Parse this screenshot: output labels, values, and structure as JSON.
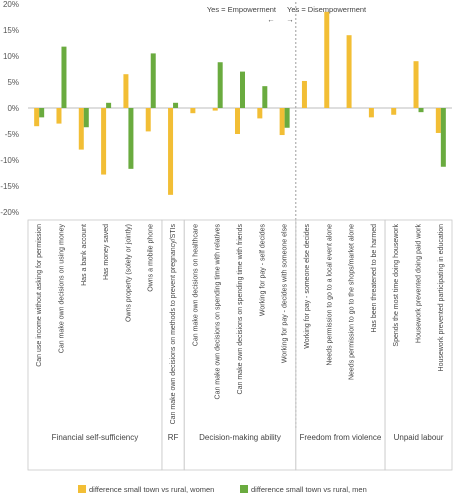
{
  "chart_data": {
    "type": "bar",
    "ylim": [
      -20,
      20
    ],
    "yticks": [
      "-20%",
      "-15%",
      "-10%",
      "-5%",
      "0%",
      "5%",
      "10%",
      "15%",
      "20%"
    ],
    "ytick_values": [
      -20,
      -15,
      -10,
      -5,
      0,
      5,
      10,
      15,
      20
    ],
    "grid": false,
    "categories": [
      "Can use income without asking for permission",
      "Can make own decisions on using money",
      "Has a bank account",
      "Has money saved",
      "Owns property (solely or jointly)",
      "Owns a mobile phone",
      "Can make own decisions on  methods to prevent pregnancy/STIs",
      "Can make own decisions on healthcare",
      "Can make own decisions on spending time with relatives",
      "Can make own decisions on spending time with friends",
      "Working for pay - self decides",
      "Working for pay - decides with someone else",
      "Working for pay - someone else decides",
      "Needs permission to go to a local event alone",
      "Needs permission to go to the shops/market alone",
      "Has been threatened to be harmed",
      "Spends the most time doing housework",
      "Housework prevented doing paid work",
      "Housework prevented participating in education"
    ],
    "series": [
      {
        "name": "difference small town vs rural, women",
        "color": "#F2BE35",
        "values": [
          -3.5,
          -3.0,
          -8.0,
          -12.8,
          6.5,
          -4.5,
          -16.7,
          -1.0,
          -0.5,
          -5.0,
          -2.0,
          -5.2,
          5.2,
          18.5,
          14.0,
          -1.8,
          -1.3,
          9.0,
          -4.8
        ]
      },
      {
        "name": "difference small town vs rural, men",
        "color": "#6AAB3F",
        "values": [
          -1.8,
          11.8,
          -3.7,
          1.0,
          -11.7,
          10.5,
          1.0,
          0.0,
          8.8,
          7.0,
          4.2,
          -3.8,
          0.0,
          0.0,
          0.0,
          0.0,
          0.0,
          -0.8,
          -11.3
        ]
      }
    ],
    "groups": [
      {
        "label": "Financial self-sufficiency",
        "count": 6
      },
      {
        "label": "RF",
        "count": 1
      },
      {
        "label": "Decision-making ability",
        "count": 5
      },
      {
        "label": "Freedom from violence",
        "count": 4
      },
      {
        "label": "Unpaid labour",
        "count": 3
      }
    ],
    "annotations": {
      "empowerment": "Yes = Empowerment",
      "disempowerment": "Yes = Disempowerment",
      "arrow_left": "←",
      "arrow_right": "→"
    },
    "legend_position": "bottom"
  }
}
